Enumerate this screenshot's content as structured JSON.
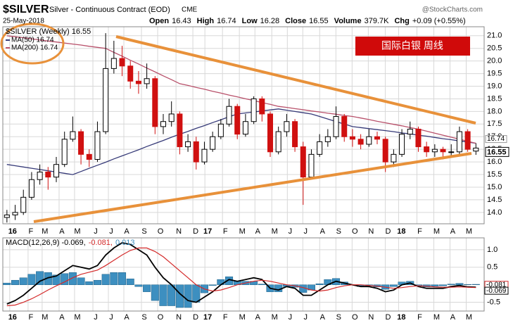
{
  "chart_data": [
    {
      "type": "candlestick",
      "header": {
        "symbol": "$SILVER",
        "name": "Silver - Continuous Contract (EOD)",
        "exchange": "CME",
        "date": "25-May-2018",
        "quote": [
          {
            "label": "Open",
            "value": "16.43"
          },
          {
            "label": "High",
            "value": "16.74"
          },
          {
            "label": "Low",
            "value": "16.28"
          },
          {
            "label": "Close",
            "value": "16.55"
          },
          {
            "label": "Volume",
            "value": "379.7K"
          },
          {
            "label": "Chg",
            "value": "+0.09 (+0.55%)"
          }
        ],
        "source": "@StockCharts.com"
      },
      "annotation": "国际白银  周线",
      "grid": true,
      "xlim": [
        -0.5,
        58
      ],
      "xticks": [
        {
          "value": 0.34,
          "label": "16"
        },
        {
          "value": 2.57,
          "label": "F"
        },
        {
          "value": 4.28,
          "label": "M"
        },
        {
          "value": 6.34,
          "label": "A"
        },
        {
          "value": 8.22,
          "label": "M"
        },
        {
          "value": 10.45,
          "label": "J"
        },
        {
          "value": 12.33,
          "label": "J"
        },
        {
          "value": 14.21,
          "label": "A"
        },
        {
          "value": 16.35,
          "label": "S"
        },
        {
          "value": 18.32,
          "label": "O"
        },
        {
          "value": 20.55,
          "label": "N"
        },
        {
          "value": 22.6,
          "label": "D"
        },
        {
          "value": 24.06,
          "label": "17"
        },
        {
          "value": 26.2,
          "label": "F"
        },
        {
          "value": 28.25,
          "label": "M"
        },
        {
          "value": 30.14,
          "label": "A"
        },
        {
          "value": 32.19,
          "label": "M"
        },
        {
          "value": 34.08,
          "label": "J"
        },
        {
          "value": 35.96,
          "label": "J"
        },
        {
          "value": 38.01,
          "label": "A"
        },
        {
          "value": 39.98,
          "label": "S"
        },
        {
          "value": 41.95,
          "label": "O"
        },
        {
          "value": 43.92,
          "label": "N"
        },
        {
          "value": 45.98,
          "label": "D"
        },
        {
          "value": 47.6,
          "label": "18"
        },
        {
          "value": 49.83,
          "label": "F"
        },
        {
          "value": 51.88,
          "label": "M"
        },
        {
          "value": 53.85,
          "label": "A"
        },
        {
          "value": 55.82,
          "label": "M"
        }
      ],
      "ylim": [
        13.55,
        21.3
      ],
      "yticks": [
        {
          "value": 14,
          "label": "14.0"
        },
        14.5,
        {
          "value": 15,
          "label": "15.0"
        },
        15.5,
        {
          "value": 16,
          "label": "16.0"
        },
        16.5,
        {
          "value": 17,
          "label": "17.0"
        },
        17.5,
        {
          "value": 18,
          "label": "18.0"
        },
        18.5,
        {
          "value": 19,
          "label": "19.0"
        },
        19.5,
        {
          "value": 20,
          "label": "20.0"
        },
        20.5,
        {
          "value": 21,
          "label": "21.0"
        }
      ],
      "candles": {
        "name": "$SILVER (Weekly) 16.55",
        "up_color": "#000000",
        "down_color": "#d01010",
        "open": [
          13.8,
          13.9,
          14.0,
          14.6,
          15.3,
          15.6,
          15.4,
          15.9,
          16.9,
          17.2,
          16.3,
          16.1,
          17.2,
          19.7,
          20.1,
          19.8,
          19.2,
          19.1,
          19.3,
          17.4,
          17.6,
          17.9,
          16.6,
          16.8,
          16.0,
          16.5,
          17.0,
          17.5,
          18.2,
          17.1,
          17.6,
          18.5,
          17.9,
          16.4,
          17.2,
          17.6,
          16.6,
          15.4,
          16.3,
          16.8,
          17.0,
          17.8,
          17.0,
          16.9,
          16.7,
          17.0,
          16.9,
          16.0,
          16.3,
          17.1,
          17.3,
          16.6,
          16.4,
          16.5,
          16.4,
          16.4,
          17.2,
          16.43
        ],
        "high": [
          14.1,
          14.3,
          14.9,
          15.6,
          15.9,
          15.8,
          16.2,
          17.2,
          17.8,
          17.3,
          16.5,
          17.6,
          21.1,
          20.8,
          20.6,
          20.0,
          19.6,
          19.9,
          19.4,
          17.9,
          18.4,
          18.0,
          17.1,
          17.0,
          16.8,
          17.2,
          17.7,
          18.5,
          18.3,
          17.9,
          18.6,
          18.6,
          18.0,
          17.4,
          17.9,
          17.7,
          16.8,
          16.5,
          17.1,
          17.3,
          18.2,
          17.9,
          17.3,
          17.1,
          17.3,
          17.2,
          17.0,
          16.5,
          17.3,
          17.6,
          17.4,
          16.8,
          16.7,
          16.6,
          16.7,
          17.4,
          17.3,
          16.74
        ],
        "low": [
          13.6,
          13.7,
          13.9,
          14.5,
          15.1,
          14.9,
          15.2,
          15.8,
          16.8,
          15.9,
          15.8,
          16.0,
          17.1,
          19.5,
          19.4,
          18.9,
          18.7,
          18.9,
          17.1,
          17.1,
          17.4,
          16.3,
          16.4,
          15.7,
          15.9,
          16.4,
          16.9,
          17.4,
          16.9,
          17.0,
          17.5,
          17.6,
          16.2,
          16.3,
          17.0,
          16.4,
          14.3,
          15.3,
          16.2,
          16.6,
          16.9,
          16.8,
          16.6,
          16.5,
          16.6,
          16.7,
          15.6,
          15.8,
          16.2,
          16.9,
          16.4,
          16.2,
          16.2,
          16.1,
          16.2,
          16.3,
          16.4,
          16.28
        ],
        "close": [
          13.9,
          14.0,
          14.6,
          15.3,
          15.6,
          15.4,
          15.9,
          16.9,
          17.2,
          16.3,
          16.1,
          17.2,
          19.7,
          20.1,
          19.8,
          19.2,
          19.1,
          19.3,
          17.4,
          17.6,
          17.9,
          16.6,
          16.8,
          16.0,
          16.5,
          17.0,
          17.5,
          18.2,
          17.1,
          17.6,
          18.5,
          17.9,
          16.4,
          17.2,
          17.6,
          16.6,
          15.4,
          16.3,
          16.8,
          17.0,
          17.8,
          17.0,
          16.9,
          16.7,
          17.0,
          16.9,
          16.0,
          16.3,
          17.1,
          17.3,
          16.6,
          16.4,
          16.5,
          16.4,
          16.4,
          17.2,
          16.5,
          16.55
        ]
      },
      "series": [
        {
          "name": "MA(50) 16.74",
          "color": "#363a78",
          "values": [
            15.9,
            15.85,
            15.8,
            15.75,
            15.7,
            15.65,
            15.6,
            15.55,
            15.5,
            15.62,
            15.75,
            15.87,
            15.99,
            16.12,
            16.24,
            16.36,
            16.48,
            16.61,
            16.73,
            16.85,
            16.98,
            17.1,
            17.21,
            17.33,
            17.44,
            17.56,
            17.67,
            17.79,
            17.9,
            17.94,
            17.98,
            18.02,
            18.06,
            18.1,
            18.05,
            18.0,
            17.95,
            17.9,
            17.8,
            17.7,
            17.6,
            17.5,
            17.4,
            17.36,
            17.32,
            17.28,
            17.24,
            17.2,
            17.15,
            17.11,
            17.06,
            17.02,
            16.97,
            16.92,
            16.88,
            16.83,
            16.79,
            16.74
          ]
        },
        {
          "name": "MA(200) 16.74",
          "color": "#b8506a",
          "values": [
            21.0,
            20.96,
            20.92,
            20.88,
            20.83,
            20.79,
            20.75,
            20.71,
            20.67,
            20.63,
            20.58,
            20.54,
            20.5,
            20.34,
            20.19,
            20.03,
            19.88,
            19.72,
            19.57,
            19.41,
            19.26,
            19.1,
            19.03,
            18.95,
            18.88,
            18.8,
            18.73,
            18.65,
            18.58,
            18.5,
            18.43,
            18.35,
            18.28,
            18.2,
            18.16,
            18.11,
            18.07,
            18.02,
            17.98,
            17.93,
            17.89,
            17.84,
            17.8,
            17.74,
            17.68,
            17.61,
            17.55,
            17.49,
            17.43,
            17.36,
            17.3,
            17.22,
            17.14,
            17.06,
            16.98,
            16.9,
            16.82,
            16.74
          ]
        }
      ]
    },
    {
      "type": "macd",
      "ylim": [
        -0.75,
        1.3
      ],
      "yticks": [
        {
          "value": 1,
          "label": "1.0"
        },
        0.5,
        -0.5
      ],
      "series": [
        {
          "name": "MACD(12,26,9) -0.069,",
          "type": "line",
          "color": "#000000",
          "values": [
            -0.55,
            -0.45,
            -0.3,
            -0.1,
            0.1,
            0.2,
            0.25,
            0.4,
            0.55,
            0.5,
            0.45,
            0.55,
            0.85,
            1.05,
            1.2,
            1.15,
            1.0,
            0.85,
            0.5,
            0.2,
            0.0,
            -0.25,
            -0.45,
            -0.5,
            -0.35,
            -0.2,
            0.0,
            0.15,
            0.1,
            0.15,
            0.2,
            0.15,
            -0.1,
            -0.15,
            -0.05,
            -0.1,
            -0.3,
            -0.3,
            -0.15,
            0.0,
            0.1,
            0.05,
            0.0,
            -0.05,
            -0.05,
            -0.1,
            -0.2,
            -0.15,
            0.0,
            0.05,
            -0.05,
            -0.1,
            -0.1,
            -0.1,
            -0.05,
            -0.02,
            -0.06,
            -0.069
          ]
        },
        {
          "name": "-0.081,",
          "type": "line",
          "color": "#d42a2a",
          "values": [
            -0.6,
            -0.58,
            -0.5,
            -0.4,
            -0.28,
            -0.15,
            -0.03,
            0.08,
            0.2,
            0.3,
            0.36,
            0.42,
            0.55,
            0.7,
            0.85,
            0.98,
            1.05,
            1.05,
            0.95,
            0.8,
            0.6,
            0.4,
            0.2,
            0.0,
            -0.12,
            -0.18,
            -0.15,
            -0.08,
            0.0,
            0.05,
            0.1,
            0.13,
            0.1,
            0.05,
            0.0,
            -0.03,
            -0.08,
            -0.15,
            -0.18,
            -0.15,
            -0.08,
            -0.03,
            0.0,
            0.0,
            -0.02,
            -0.04,
            -0.07,
            -0.1,
            -0.08,
            -0.05,
            -0.03,
            -0.04,
            -0.06,
            -0.07,
            -0.07,
            -0.06,
            -0.07,
            -0.081
          ]
        },
        {
          "name": "0.013",
          "type": "bar",
          "color": "#3d8fc0",
          "values": [
            0.05,
            0.13,
            0.2,
            0.3,
            0.38,
            0.35,
            0.28,
            0.32,
            0.35,
            0.2,
            0.09,
            0.13,
            0.3,
            0.35,
            0.35,
            0.17,
            -0.05,
            -0.2,
            -0.45,
            -0.6,
            -0.6,
            -0.65,
            -0.65,
            -0.5,
            -0.23,
            -0.02,
            0.15,
            0.23,
            0.1,
            0.1,
            0.1,
            0.02,
            -0.2,
            -0.2,
            -0.05,
            -0.07,
            -0.22,
            -0.15,
            0.03,
            0.15,
            0.18,
            0.08,
            0.0,
            -0.05,
            -0.03,
            -0.06,
            -0.13,
            -0.05,
            0.08,
            0.1,
            -0.02,
            -0.06,
            -0.04,
            -0.03,
            0.02,
            0.04,
            0.01,
            0.013
          ]
        }
      ]
    }
  ]
}
